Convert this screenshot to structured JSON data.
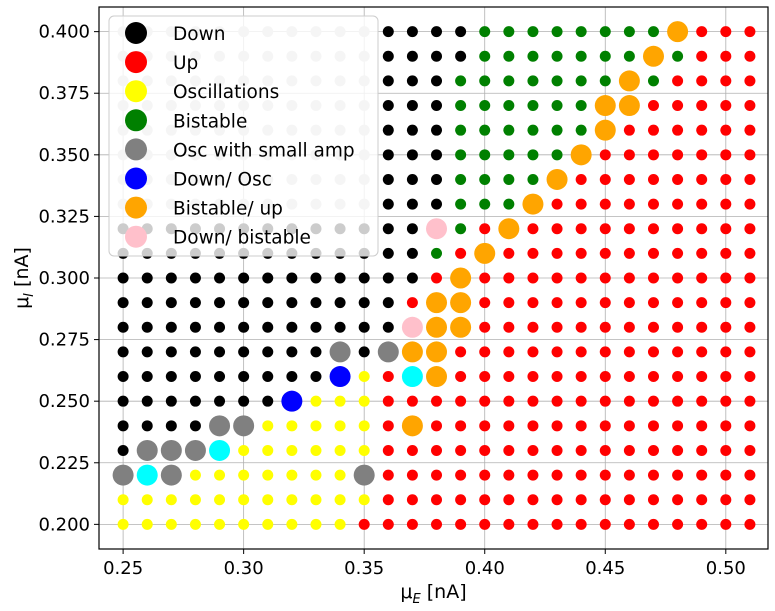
{
  "chart_data": {
    "type": "scatter",
    "xlabel": {
      "main": "μ",
      "sub": "E",
      "unit": " [nA]"
    },
    "ylabel": {
      "main": "μ",
      "sub": "I",
      "unit": " [nA]"
    },
    "xlim": [
      0.24,
      0.5175
    ],
    "ylim": [
      0.19,
      0.41
    ],
    "x_ticks": [
      "0.25",
      "0.30",
      "0.35",
      "0.40",
      "0.45",
      "0.50"
    ],
    "y_ticks": [
      "0.200",
      "0.225",
      "0.250",
      "0.275",
      "0.300",
      "0.325",
      "0.350",
      "0.375",
      "0.400"
    ],
    "grid": true,
    "legend_position": "upper-left",
    "legend": [
      {
        "label": "Down",
        "color": "#000000"
      },
      {
        "label": "Up",
        "color": "#ff0000"
      },
      {
        "label": "Oscillations",
        "color": "#ffff00"
      },
      {
        "label": "Bistable",
        "color": "#008000"
      },
      {
        "label": "Osc with small amp",
        "color": "#808080"
      },
      {
        "label": "Down/ Osc",
        "color": "#0000ff"
      },
      {
        "label": "Bistable/ up",
        "color": "#ffa500"
      },
      {
        "label": "Down/ bistable",
        "color": "#ffc0cb"
      }
    ],
    "colors": {
      "down": "#000000",
      "up": "#ff0000",
      "osc": "#ffff00",
      "bistable": "#008000",
      "small_amp": "#808080",
      "down_osc": "#0000ff",
      "bistable_up": "#ffa500",
      "down_bistable": "#ffc0cb",
      "cyan": "#00ffff",
      "light_grey": "#cccccc"
    },
    "grid_x": [
      0.25,
      0.26,
      0.27,
      0.28,
      0.29,
      0.3,
      0.31,
      0.32,
      0.33,
      0.34,
      0.35,
      0.36,
      0.37,
      0.38,
      0.39,
      0.4,
      0.41,
      0.42,
      0.43,
      0.44,
      0.45,
      0.46,
      0.47,
      0.48,
      0.49,
      0.5,
      0.51
    ],
    "grid_y": [
      0.2,
      0.21,
      0.22,
      0.23,
      0.24,
      0.25,
      0.26,
      0.27,
      0.28,
      0.29,
      0.3,
      0.31,
      0.32,
      0.33,
      0.34,
      0.35,
      0.36,
      0.37,
      0.38,
      0.39,
      0.4
    ],
    "rows": [
      "YYYYYYYYYYRRRRRRRRRRRRRRRRR",
      "YYYYYYYYYYYRRRRRRRRRRRRRRRR",
      "YYYYYYYYYYYRRRRRRRRRRRRRRRR",
      "KYYYYYYYYYYRRRRRRRRRRRRRRRR",
      "KKKKKYYYYYYRRRRRRRRRRRRRRRR",
      "KKKKKKKYYYYRRRRRRRRRRRRRRRR",
      "KKKKKKKKKKYRRRRRRRRRRRRRRRR",
      "KKKKKKKKKKKRRRRRRRRRRRRRRRR",
      "KKKKKKKKKKKKRRRRRRRRRRRRRRR",
      "KKKKKKKKKKKKRRRRRRRRRRRRRRR",
      "KKKKKKKKKKKKKRRRRRRRRRRRRRR",
      "KKKKKKKKKKKKKGRRRRRRRRRRRRR",
      "KKKKKKKKKKKKKGGRRRRRRRRRRRR",
      "LLLLLLLLLLLKKKGGGRRRRRRRRRR",
      "LLLLLLLLLLLKKKGGGGRRRRRRRRR",
      "LLLLLLLLLLLKKKGGGGGGRRRRRRR",
      "LLLLLLLLLLLKKKGGGGGGGRRRRRR",
      "LLLLLLLLLLLKKKGGGGGGGGRRRRR",
      "LLLLLLLLLLLKKKGGGGGGGGGRRRR",
      "LLLLLLLLLLLKKKKGGGGGGGGGRRR",
      "LLLLLLLLLLLKKKKGGGGGGGGGRRR"
    ],
    "big_points": [
      {
        "x": 0.25,
        "y": 0.22,
        "cls": "small_amp"
      },
      {
        "x": 0.26,
        "y": 0.22,
        "cls": "cyan"
      },
      {
        "x": 0.27,
        "y": 0.22,
        "cls": "small_amp"
      },
      {
        "x": 0.35,
        "y": 0.22,
        "cls": "small_amp"
      },
      {
        "x": 0.26,
        "y": 0.23,
        "cls": "small_amp"
      },
      {
        "x": 0.27,
        "y": 0.23,
        "cls": "small_amp"
      },
      {
        "x": 0.28,
        "y": 0.23,
        "cls": "small_amp"
      },
      {
        "x": 0.29,
        "y": 0.23,
        "cls": "cyan"
      },
      {
        "x": 0.29,
        "y": 0.24,
        "cls": "small_amp"
      },
      {
        "x": 0.3,
        "y": 0.24,
        "cls": "small_amp"
      },
      {
        "x": 0.37,
        "y": 0.24,
        "cls": "bistable_up"
      },
      {
        "x": 0.32,
        "y": 0.25,
        "cls": "down_osc"
      },
      {
        "x": 0.34,
        "y": 0.26,
        "cls": "down_osc"
      },
      {
        "x": 0.37,
        "y": 0.26,
        "cls": "cyan"
      },
      {
        "x": 0.38,
        "y": 0.26,
        "cls": "bistable_up"
      },
      {
        "x": 0.34,
        "y": 0.27,
        "cls": "small_amp"
      },
      {
        "x": 0.36,
        "y": 0.27,
        "cls": "small_amp"
      },
      {
        "x": 0.37,
        "y": 0.27,
        "cls": "bistable_up"
      },
      {
        "x": 0.38,
        "y": 0.27,
        "cls": "bistable_up"
      },
      {
        "x": 0.37,
        "y": 0.28,
        "cls": "down_bistable"
      },
      {
        "x": 0.38,
        "y": 0.28,
        "cls": "bistable_up"
      },
      {
        "x": 0.39,
        "y": 0.28,
        "cls": "bistable_up"
      },
      {
        "x": 0.38,
        "y": 0.29,
        "cls": "bistable_up"
      },
      {
        "x": 0.39,
        "y": 0.29,
        "cls": "bistable_up"
      },
      {
        "x": 0.39,
        "y": 0.3,
        "cls": "bistable_up"
      },
      {
        "x": 0.4,
        "y": 0.31,
        "cls": "bistable_up"
      },
      {
        "x": 0.38,
        "y": 0.32,
        "cls": "down_bistable"
      },
      {
        "x": 0.41,
        "y": 0.32,
        "cls": "bistable_up"
      },
      {
        "x": 0.42,
        "y": 0.33,
        "cls": "bistable_up"
      },
      {
        "x": 0.43,
        "y": 0.34,
        "cls": "bistable_up"
      },
      {
        "x": 0.44,
        "y": 0.35,
        "cls": "bistable_up"
      },
      {
        "x": 0.45,
        "y": 0.36,
        "cls": "bistable_up"
      },
      {
        "x": 0.45,
        "y": 0.37,
        "cls": "bistable_up"
      },
      {
        "x": 0.46,
        "y": 0.37,
        "cls": "bistable_up"
      },
      {
        "x": 0.46,
        "y": 0.38,
        "cls": "bistable_up"
      },
      {
        "x": 0.47,
        "y": 0.39,
        "cls": "bistable_up"
      },
      {
        "x": 0.48,
        "y": 0.4,
        "cls": "bistable_up"
      }
    ]
  }
}
